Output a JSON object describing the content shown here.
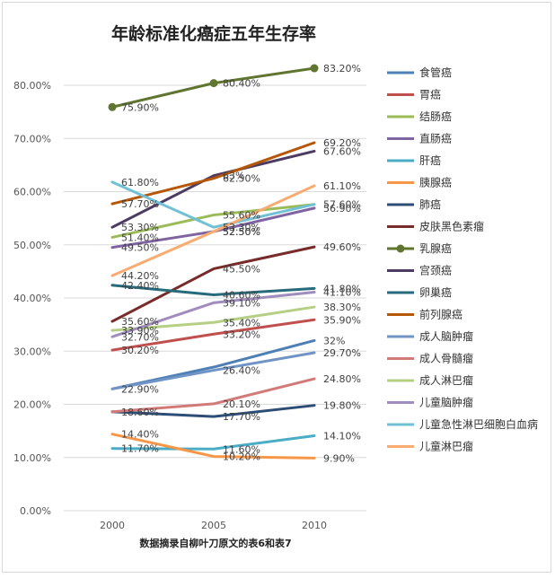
{
  "chart_data": {
    "type": "line",
    "title": "年龄标准化癌症五年生存率",
    "xlabel": "数据摘录自柳叶刀原文的表6和表7",
    "ylabel": "",
    "x": [
      "2000",
      "2005",
      "2010"
    ],
    "ylim": [
      0,
      80
    ],
    "yticks": [
      "0.00%",
      "10.00%",
      "20.00%",
      "30.00%",
      "40.00%",
      "50.00%",
      "60.00%",
      "70.00%",
      "80.00%"
    ],
    "grid": true,
    "legend_position": "right",
    "series": [
      {
        "name": "食管癌",
        "color": "#4e7fb5",
        "values": [
          22.9,
          27.0,
          32.0
        ],
        "labels": [
          "",
          "",
          "32%"
        ]
      },
      {
        "name": "胃癌",
        "color": "#c0504d",
        "values": [
          30.2,
          33.2,
          35.9
        ],
        "labels": [
          "30.20%",
          "33.20%",
          "35.90%"
        ]
      },
      {
        "name": "结肠癌",
        "color": "#9bbb59",
        "values": [
          51.4,
          55.6,
          57.6
        ],
        "labels": [
          "51.40%",
          "55.60%",
          "57.60%"
        ]
      },
      {
        "name": "直肠癌",
        "color": "#8064a2",
        "values": [
          49.5,
          52.5,
          56.9
        ],
        "labels": [
          "49.50%",
          "52.50%",
          "56.90%"
        ]
      },
      {
        "name": "肝癌",
        "color": "#4bacc6",
        "values": [
          11.7,
          11.6,
          14.1
        ],
        "labels": [
          "11.70%",
          "11.60%",
          "14.10%"
        ]
      },
      {
        "name": "胰腺癌",
        "color": "#f79646",
        "values": [
          14.4,
          10.2,
          9.9
        ],
        "labels": [
          "14.40%",
          "10.20%",
          "9.90%"
        ]
      },
      {
        "name": "肺癌",
        "color": "#2c4d75",
        "values": [
          18.6,
          17.7,
          19.8
        ],
        "labels": [
          "18.60%",
          "17.70%",
          "19.80%"
        ]
      },
      {
        "name": "皮肤黑色素瘤",
        "color": "#772c2a",
        "values": [
          35.6,
          45.5,
          49.6
        ],
        "labels": [
          "35.60%",
          "45.50%",
          "49.60%"
        ]
      },
      {
        "name": "乳腺癌",
        "color": "#5f7530",
        "values": [
          75.9,
          80.4,
          83.2
        ],
        "labels": [
          "75.90%",
          "80.40%",
          "83.20%"
        ],
        "markers": true
      },
      {
        "name": "宫颈癌",
        "color": "#4d3b62",
        "values": [
          53.3,
          63.0,
          67.6
        ],
        "labels": [
          "53.30%",
          "63%",
          "67.60%"
        ]
      },
      {
        "name": "卵巢癌",
        "color": "#276a7c",
        "values": [
          42.4,
          40.6,
          41.8
        ],
        "labels": [
          "42.40%",
          "40.60%",
          "41.80%"
        ]
      },
      {
        "name": "前列腺癌",
        "color": "#b65708",
        "values": [
          57.7,
          62.5,
          69.2
        ],
        "labels": [
          "57.70%",
          "62.50%",
          "69.20%"
        ]
      },
      {
        "name": "成人脑肿瘤",
        "color": "#7094c6",
        "values": [
          22.9,
          26.4,
          29.7
        ],
        "labels": [
          "22.90%",
          "26.40%",
          "29.70%"
        ]
      },
      {
        "name": "成人骨髓瘤",
        "color": "#d27a78",
        "values": [
          18.6,
          20.1,
          24.8
        ],
        "labels": [
          "",
          "20.10%",
          "24.80%"
        ]
      },
      {
        "name": "成人淋巴瘤",
        "color": "#b5cf85",
        "values": [
          33.9,
          35.4,
          38.3
        ],
        "labels": [
          "33.90%",
          "35.40%",
          "38.30%"
        ]
      },
      {
        "name": "儿童脑肿瘤",
        "color": "#a08cbd",
        "values": [
          32.7,
          39.1,
          41.1
        ],
        "labels": [
          "32.70%",
          "39.10%",
          "41.10%"
        ]
      },
      {
        "name": "儿童急性淋巴细胞白血病",
        "color": "#71c0d6",
        "values": [
          61.8,
          53.3,
          57.6
        ],
        "labels": [
          "61.80%",
          "53.30%",
          ""
        ]
      },
      {
        "name": "儿童淋巴瘤",
        "color": "#f9ac72",
        "values": [
          44.2,
          52.5,
          61.1
        ],
        "labels": [
          "44.20%",
          "52.50%",
          "61.10%"
        ]
      }
    ]
  }
}
